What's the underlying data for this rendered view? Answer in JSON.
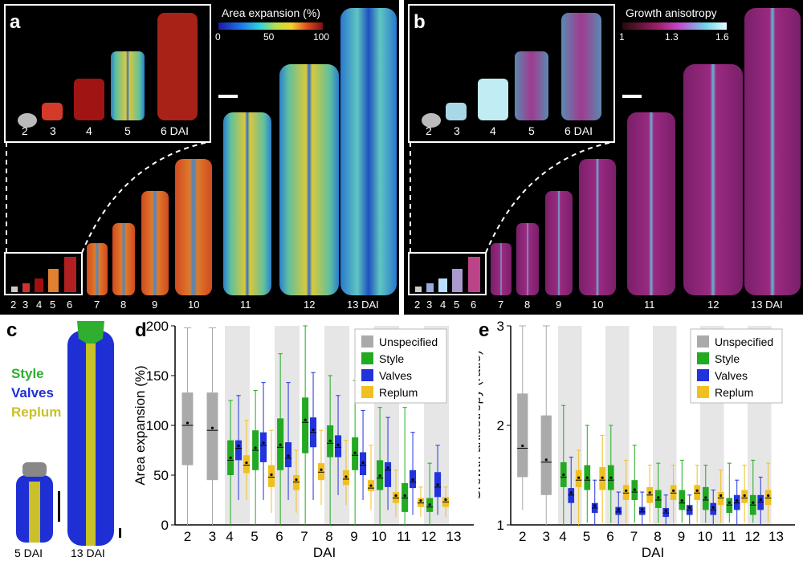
{
  "panel_a": {
    "label": "a",
    "colorbar_title": "Area expansion (%)",
    "colorbar_ticks": [
      "0",
      "50",
      "100"
    ],
    "inset_days": [
      "2",
      "3",
      "4",
      "5",
      "6 DAI"
    ],
    "main_days": [
      "2",
      "3",
      "4",
      "5",
      "6",
      "7",
      "8",
      "9",
      "10",
      "11",
      "12",
      "13 DAI"
    ]
  },
  "panel_b": {
    "label": "b",
    "colorbar_title": "Growth anisotropy",
    "colorbar_ticks": [
      "1",
      "1.3",
      "1.6"
    ],
    "inset_days": [
      "2",
      "3",
      "4",
      "5",
      "6 DAI"
    ],
    "main_days": [
      "2",
      "3",
      "4",
      "5",
      "6",
      "7",
      "8",
      "9",
      "10",
      "11",
      "12",
      "13 DAI"
    ]
  },
  "panel_c": {
    "label": "c",
    "legend": [
      {
        "name": "Style",
        "color": "#2fae2f"
      },
      {
        "name": "Valves",
        "color": "#1e2fd6"
      },
      {
        "name": "Replum",
        "color": "#c9c02a"
      }
    ],
    "days": [
      "5 DAI",
      "13 DAI"
    ]
  },
  "chart_data": [
    {
      "panel": "d",
      "type": "box",
      "xlabel": "DAI",
      "ylabel": "Area expansion (%)",
      "ylim": [
        0,
        200
      ],
      "yticks": [
        "0",
        "50",
        "100",
        "150",
        "200"
      ],
      "x": [
        "2",
        "3",
        "4",
        "5",
        "6",
        "7",
        "8",
        "9",
        "10",
        "11",
        "12",
        "13"
      ],
      "legend": [
        "Unspecified",
        "Style",
        "Valves",
        "Replum"
      ],
      "series": [
        {
          "name": "Unspecified",
          "color": "#aaaaaa",
          "values": [
            {
              "day": 2,
              "min": 0,
              "q1": 60,
              "median": 100,
              "q3": 133,
              "max": 198
            },
            {
              "day": 3,
              "min": 0,
              "q1": 45,
              "median": 95,
              "q3": 133,
              "max": 198
            }
          ]
        },
        {
          "name": "Style",
          "color": "#22aa22",
          "values": [
            {
              "day": 4,
              "min": 0,
              "q1": 50,
              "median": 65,
              "q3": 85,
              "max": 125
            },
            {
              "day": 5,
              "min": 0,
              "q1": 55,
              "median": 75,
              "q3": 95,
              "max": 135
            },
            {
              "day": 6,
              "min": 0,
              "q1": 55,
              "median": 78,
              "q3": 107,
              "max": 172
            },
            {
              "day": 7,
              "min": 0,
              "q1": 72,
              "median": 103,
              "q3": 128,
              "max": 200
            },
            {
              "day": 8,
              "min": 0,
              "q1": 68,
              "median": 82,
              "q3": 100,
              "max": 150
            },
            {
              "day": 9,
              "min": 0,
              "q1": 55,
              "median": 70,
              "q3": 88,
              "max": 145
            },
            {
              "day": 10,
              "min": 0,
              "q1": 35,
              "median": 47,
              "q3": 65,
              "max": 118
            },
            {
              "day": 11,
              "min": 0,
              "q1": 13,
              "median": 27,
              "q3": 42,
              "max": 118
            },
            {
              "day": 12,
              "min": 0,
              "q1": 13,
              "median": 18,
              "q3": 27,
              "max": 62
            }
          ]
        },
        {
          "name": "Valves",
          "color": "#2233dd",
          "values": [
            {
              "day": 4,
              "min": 25,
              "q1": 65,
              "median": 77,
              "q3": 85,
              "max": 130
            },
            {
              "day": 5,
              "min": 25,
              "q1": 63,
              "median": 80,
              "q3": 93,
              "max": 143
            },
            {
              "day": 6,
              "min": 25,
              "q1": 58,
              "median": 67,
              "q3": 83,
              "max": 143
            },
            {
              "day": 7,
              "min": 25,
              "q1": 78,
              "median": 93,
              "q3": 108,
              "max": 153
            },
            {
              "day": 8,
              "min": 30,
              "q1": 68,
              "median": 78,
              "q3": 90,
              "max": 130
            },
            {
              "day": 9,
              "min": 25,
              "q1": 50,
              "median": 60,
              "q3": 73,
              "max": 115
            },
            {
              "day": 10,
              "min": 15,
              "q1": 38,
              "median": 55,
              "q3": 63,
              "max": 108
            },
            {
              "day": 11,
              "min": 10,
              "q1": 37,
              "median": 43,
              "q3": 55,
              "max": 93
            },
            {
              "day": 12,
              "min": 10,
              "q1": 28,
              "median": 38,
              "q3": 53,
              "max": 80
            }
          ]
        },
        {
          "name": "Replum",
          "color": "#f0c020",
          "values": [
            {
              "day": 4,
              "min": 25,
              "q1": 52,
              "median": 60,
              "q3": 70,
              "max": 105
            },
            {
              "day": 5,
              "min": 12,
              "q1": 38,
              "median": 48,
              "q3": 60,
              "max": 95
            },
            {
              "day": 6,
              "min": 12,
              "q1": 35,
              "median": 43,
              "q3": 50,
              "max": 75
            },
            {
              "day": 7,
              "min": 20,
              "q1": 45,
              "median": 53,
              "q3": 62,
              "max": 95
            },
            {
              "day": 8,
              "min": 20,
              "q1": 40,
              "median": 46,
              "q3": 55,
              "max": 85
            },
            {
              "day": 9,
              "min": 15,
              "q1": 34,
              "median": 37,
              "q3": 45,
              "max": 80
            },
            {
              "day": 10,
              "min": 8,
              "q1": 22,
              "median": 27,
              "q3": 33,
              "max": 55
            },
            {
              "day": 11,
              "min": 8,
              "q1": 18,
              "median": 22,
              "q3": 27,
              "max": 38
            },
            {
              "day": 12,
              "min": 8,
              "q1": 18,
              "median": 23,
              "q3": 28,
              "max": 38
            }
          ]
        }
      ]
    },
    {
      "panel": "e",
      "type": "box",
      "xlabel": "DAI",
      "ylabel": "Growth anisotropy (ratio)",
      "ylim": [
        1,
        3
      ],
      "yticks": [
        "1",
        "2",
        "3"
      ],
      "x": [
        "2",
        "3",
        "4",
        "5",
        "6",
        "7",
        "8",
        "9",
        "10",
        "11",
        "12",
        "13"
      ],
      "legend": [
        "Unspecified",
        "Style",
        "Valves",
        "Replum"
      ],
      "series": [
        {
          "name": "Unspecified",
          "color": "#aaaaaa",
          "values": [
            {
              "day": 2,
              "min": 1.15,
              "q1": 1.48,
              "median": 1.77,
              "q3": 2.32,
              "max": 3.0
            },
            {
              "day": 3,
              "min": 1.0,
              "q1": 1.3,
              "median": 1.63,
              "q3": 2.1,
              "max": 3.0
            }
          ]
        },
        {
          "name": "Style",
          "color": "#22aa22",
          "values": [
            {
              "day": 4,
              "min": 1.0,
              "q1": 1.38,
              "median": 1.48,
              "q3": 1.63,
              "max": 2.2
            },
            {
              "day": 5,
              "min": 1.02,
              "q1": 1.35,
              "median": 1.45,
              "q3": 1.6,
              "max": 2.0
            },
            {
              "day": 6,
              "min": 1.02,
              "q1": 1.35,
              "median": 1.45,
              "q3": 1.6,
              "max": 2.0
            },
            {
              "day": 7,
              "min": 1.02,
              "q1": 1.25,
              "median": 1.33,
              "q3": 1.45,
              "max": 1.8
            },
            {
              "day": 8,
              "min": 1.02,
              "q1": 1.17,
              "median": 1.25,
              "q3": 1.35,
              "max": 1.62
            },
            {
              "day": 9,
              "min": 1.02,
              "q1": 1.15,
              "median": 1.22,
              "q3": 1.35,
              "max": 1.65
            },
            {
              "day": 10,
              "min": 1.02,
              "q1": 1.15,
              "median": 1.25,
              "q3": 1.38,
              "max": 1.6
            },
            {
              "day": 11,
              "min": 1.02,
              "q1": 1.12,
              "median": 1.2,
              "q3": 1.27,
              "max": 1.62
            },
            {
              "day": 12,
              "min": 1.02,
              "q1": 1.1,
              "median": 1.2,
              "q3": 1.3,
              "max": 1.65
            }
          ]
        },
        {
          "name": "Valves",
          "color": "#2233dd",
          "values": [
            {
              "day": 4,
              "min": 1.0,
              "q1": 1.22,
              "median": 1.3,
              "q3": 1.37,
              "max": 1.68
            },
            {
              "day": 5,
              "min": 1.0,
              "q1": 1.12,
              "median": 1.17,
              "q3": 1.22,
              "max": 1.45
            },
            {
              "day": 6,
              "min": 1.0,
              "q1": 1.1,
              "median": 1.13,
              "q3": 1.18,
              "max": 1.33
            },
            {
              "day": 7,
              "min": 1.0,
              "q1": 1.1,
              "median": 1.13,
              "q3": 1.18,
              "max": 1.33
            },
            {
              "day": 8,
              "min": 1.0,
              "q1": 1.08,
              "median": 1.12,
              "q3": 1.17,
              "max": 1.3
            },
            {
              "day": 9,
              "min": 1.0,
              "q1": 1.1,
              "median": 1.15,
              "q3": 1.2,
              "max": 1.3
            },
            {
              "day": 10,
              "min": 1.0,
              "q1": 1.1,
              "median": 1.15,
              "q3": 1.22,
              "max": 1.35
            },
            {
              "day": 11,
              "min": 1.0,
              "q1": 1.15,
              "median": 1.22,
              "q3": 1.3,
              "max": 1.45
            },
            {
              "day": 12,
              "min": 1.0,
              "q1": 1.15,
              "median": 1.23,
              "q3": 1.3,
              "max": 1.48
            }
          ]
        },
        {
          "name": "Replum",
          "color": "#f0c020",
          "values": [
            {
              "day": 4,
              "min": 1.0,
              "q1": 1.38,
              "median": 1.45,
              "q3": 1.55,
              "max": 1.75
            },
            {
              "day": 5,
              "min": 1.02,
              "q1": 1.35,
              "median": 1.45,
              "q3": 1.58,
              "max": 1.9
            },
            {
              "day": 6,
              "min": 1.02,
              "q1": 1.25,
              "median": 1.32,
              "q3": 1.4,
              "max": 1.65
            },
            {
              "day": 7,
              "min": 1.02,
              "q1": 1.22,
              "median": 1.3,
              "q3": 1.38,
              "max": 1.6
            },
            {
              "day": 8,
              "min": 1.02,
              "q1": 1.25,
              "median": 1.32,
              "q3": 1.4,
              "max": 1.6
            },
            {
              "day": 9,
              "min": 1.02,
              "q1": 1.25,
              "median": 1.32,
              "q3": 1.4,
              "max": 1.6
            },
            {
              "day": 10,
              "min": 1.02,
              "q1": 1.2,
              "median": 1.27,
              "q3": 1.33,
              "max": 1.55
            },
            {
              "day": 11,
              "min": 1.02,
              "q1": 1.22,
              "median": 1.27,
              "q3": 1.35,
              "max": 1.6
            },
            {
              "day": 12,
              "min": 1.02,
              "q1": 1.2,
              "median": 1.27,
              "q3": 1.35,
              "max": 1.62
            }
          ]
        }
      ]
    }
  ]
}
